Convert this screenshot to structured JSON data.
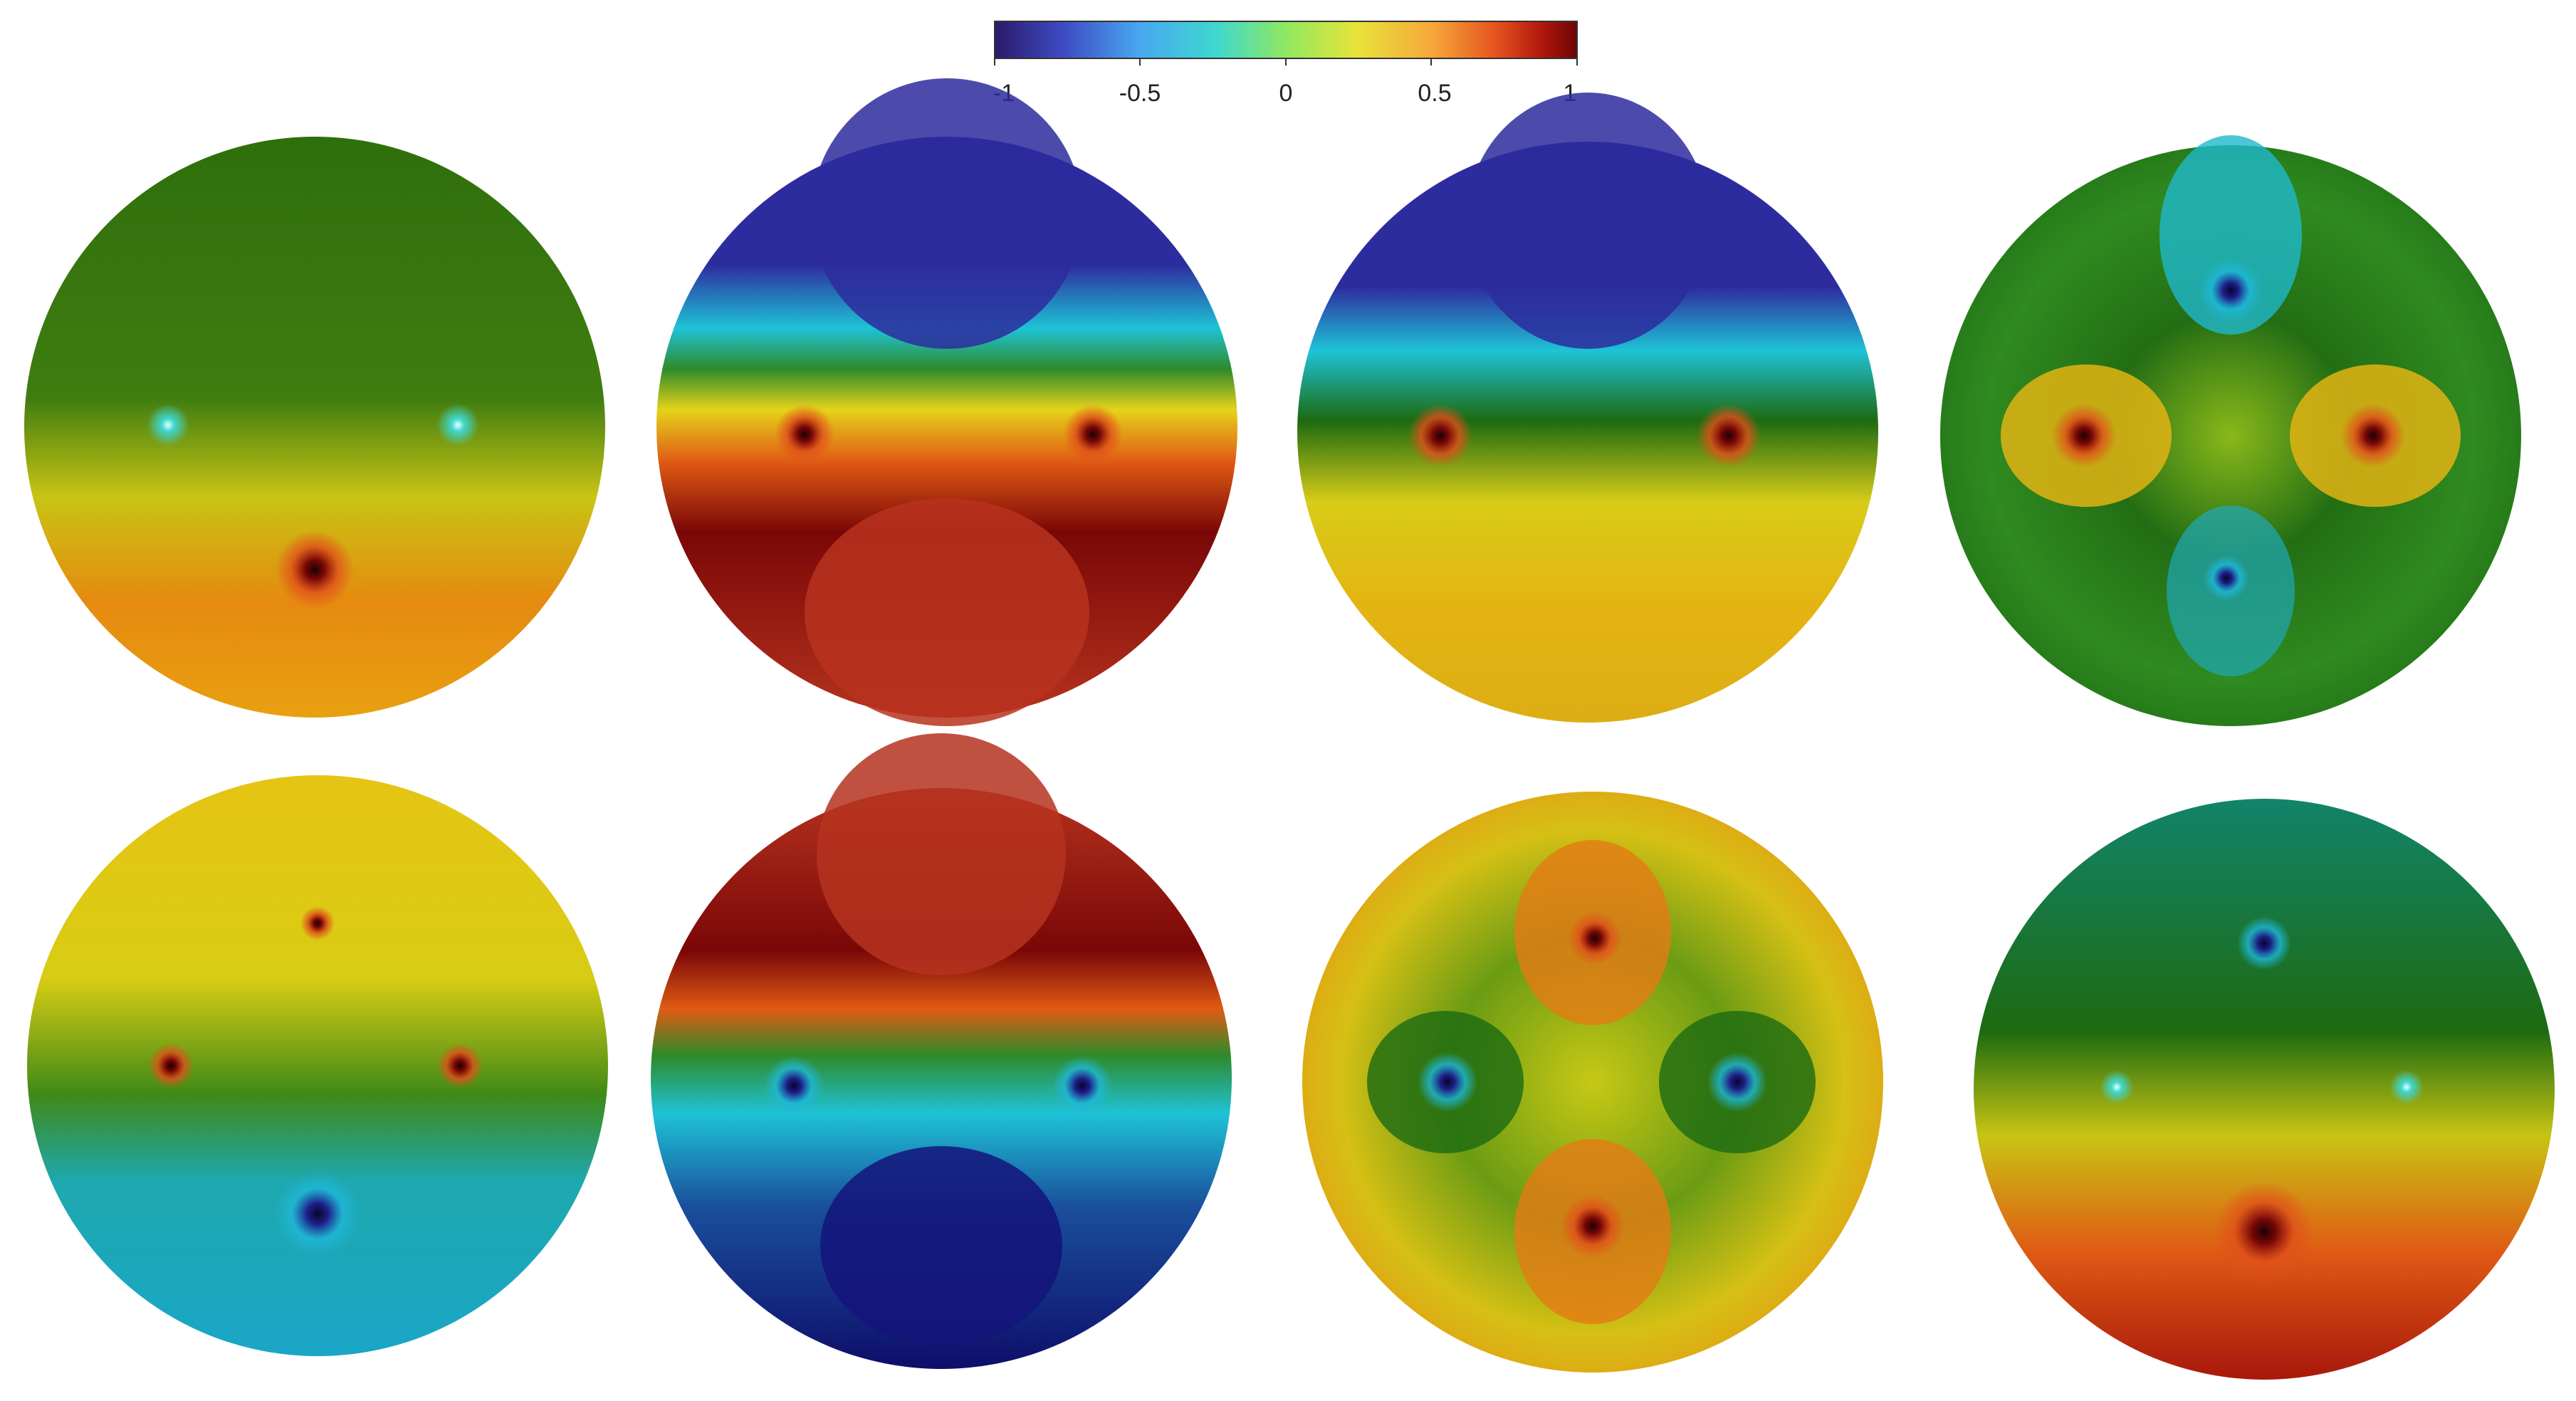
{
  "colorbar": {
    "ticks": [
      "-1",
      "-0.5",
      "0",
      "0.5",
      "1"
    ],
    "tick_values": [
      -1,
      -0.5,
      0,
      0.5,
      1
    ],
    "range": [
      -1,
      1
    ],
    "colormap": [
      "#2b1a6b",
      "#3e4cc4",
      "#48a8f0",
      "#3fd7d0",
      "#8fe860",
      "#e7e43a",
      "#f6a83a",
      "#e5541f",
      "#b0170c",
      "#6e0505"
    ]
  },
  "panels": [
    {
      "name": "panel-row1-col1",
      "level": 0.05
    },
    {
      "name": "panel-row1-col2",
      "level": 0.55
    },
    {
      "name": "panel-row1-col3",
      "level": 0.3
    },
    {
      "name": "panel-row1-col4",
      "level": 0.0
    },
    {
      "name": "panel-row2-col1",
      "level": -0.05
    },
    {
      "name": "panel-row2-col2",
      "level": -0.55
    },
    {
      "name": "panel-row2-col3",
      "level": 0.05
    },
    {
      "name": "panel-row2-col4",
      "level": 0.1
    }
  ]
}
